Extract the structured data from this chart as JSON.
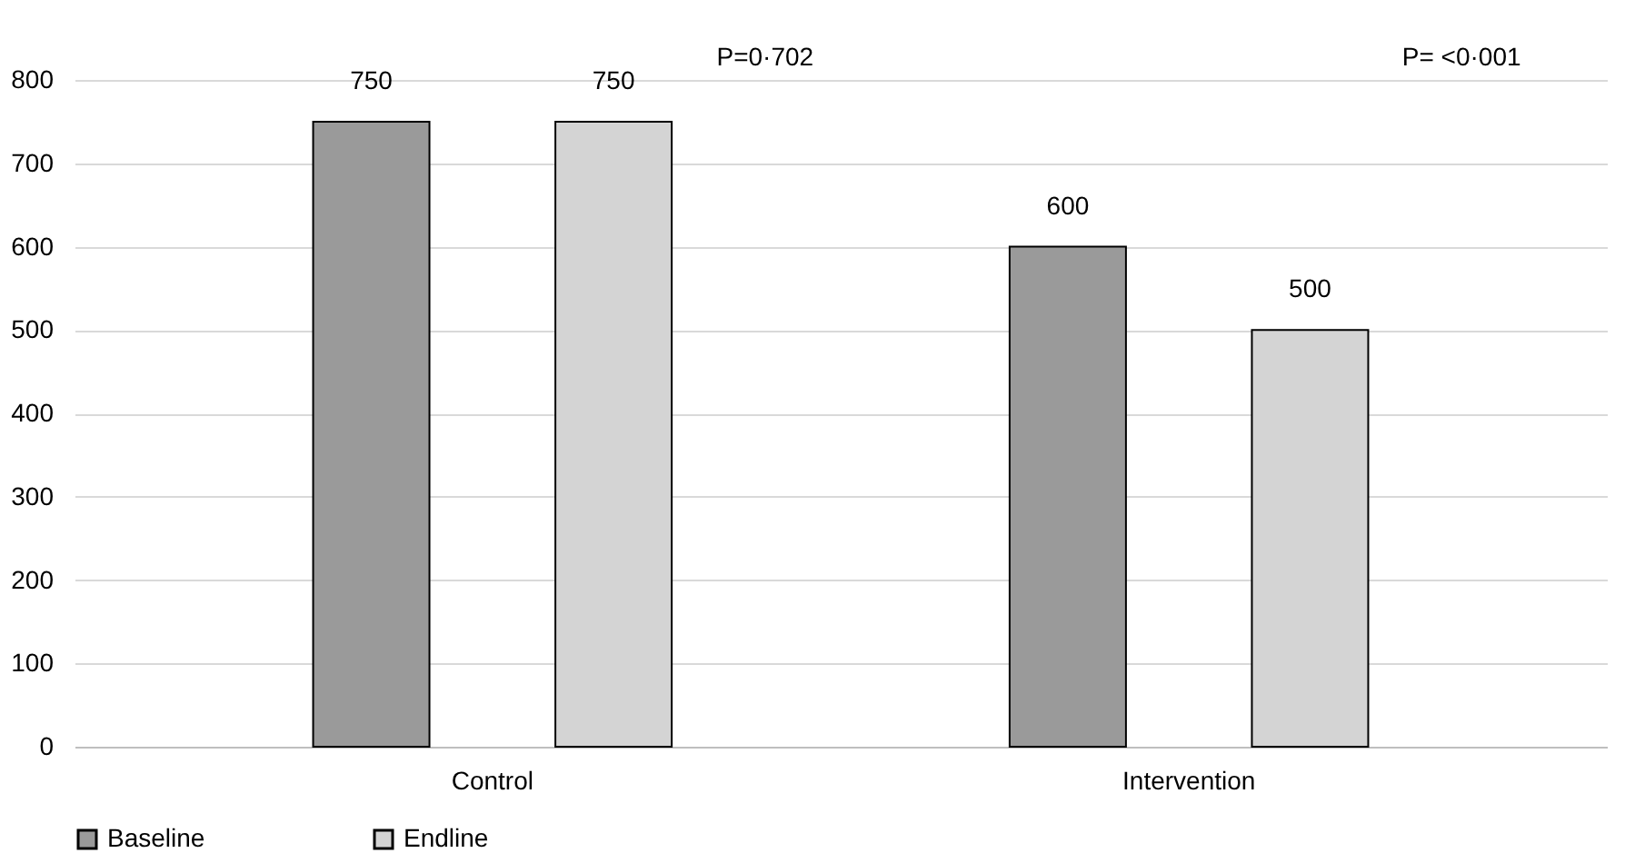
{
  "chart_data": {
    "type": "bar",
    "categories": [
      "Control",
      "Intervention"
    ],
    "series": [
      {
        "name": "Baseline",
        "color": "#9a9a9a",
        "values": [
          750,
          600
        ]
      },
      {
        "name": "Endline",
        "color": "#d4d4d4",
        "values": [
          750,
          500
        ]
      }
    ],
    "ylim": [
      0,
      800
    ],
    "yticks": [
      0,
      100,
      200,
      300,
      400,
      500,
      600,
      700,
      800
    ],
    "grid": "y",
    "legend": "bottom",
    "data_labels": true,
    "annotations": [
      "P=0·702",
      "P= <0·001"
    ]
  }
}
